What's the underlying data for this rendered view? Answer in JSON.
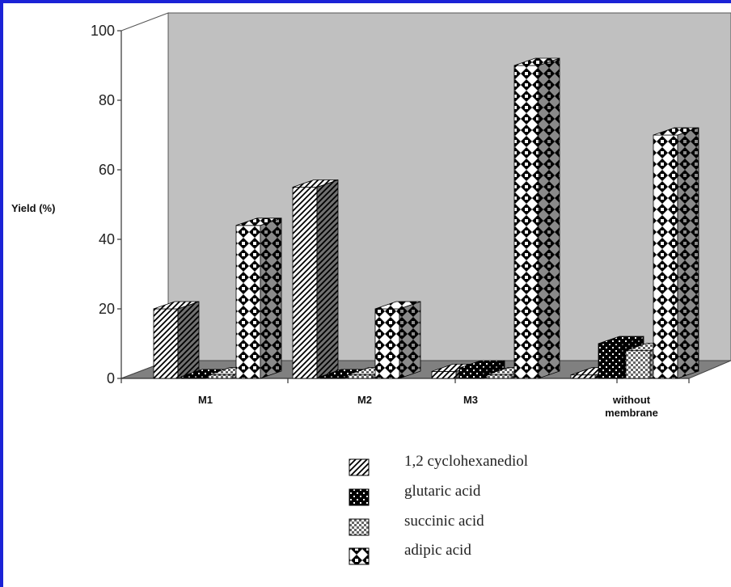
{
  "chart_data": {
    "type": "bar",
    "ylabel": "Yield (%)",
    "xlabel": "",
    "ylim": [
      0,
      100
    ],
    "yticks": [
      "0",
      "20",
      "40",
      "60",
      "80",
      "100"
    ],
    "categories": [
      "M1",
      "M2",
      "M3",
      "without membrane"
    ],
    "series": [
      {
        "name": "1,2 cyclohexanediol",
        "values": [
          20,
          55,
          2,
          1
        ]
      },
      {
        "name": "glutaric acid",
        "values": [
          0.5,
          0.5,
          3,
          10
        ]
      },
      {
        "name": "succinic acid",
        "values": [
          1,
          1,
          1,
          8
        ]
      },
      {
        "name": "adipic acid",
        "values": [
          44,
          20,
          90,
          70
        ]
      }
    ],
    "grid": false,
    "legend_position": "bottom"
  },
  "colors": {
    "border": "#1a22d6",
    "wall": "#c0c0c0",
    "floor": "#808080"
  }
}
